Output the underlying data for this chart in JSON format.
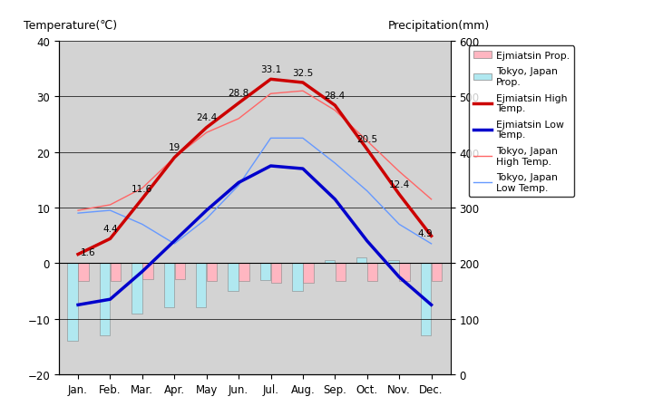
{
  "months": [
    "Jan.",
    "Feb.",
    "Mar.",
    "Apr.",
    "May",
    "Jun.",
    "Jul.",
    "Aug.",
    "Sep.",
    "Oct.",
    "Nov.",
    "Dec."
  ],
  "ejm_high": [
    1.6,
    4.4,
    11.6,
    19.0,
    24.4,
    28.8,
    33.1,
    32.5,
    28.4,
    20.5,
    12.4,
    4.9
  ],
  "ejm_low": [
    -7.5,
    -6.5,
    -1.5,
    4.0,
    9.5,
    14.5,
    17.5,
    17.0,
    11.5,
    4.0,
    -2.5,
    -7.5
  ],
  "tokyo_high": [
    9.5,
    10.5,
    13.5,
    19.0,
    23.5,
    26.0,
    30.5,
    31.0,
    27.5,
    22.0,
    16.5,
    11.5
  ],
  "tokyo_low": [
    9.0,
    9.5,
    7.0,
    3.5,
    8.0,
    14.0,
    22.5,
    22.5,
    18.0,
    13.0,
    7.0,
    3.5
  ],
  "ejm_precip_neg": [
    -3.2,
    -3.2,
    -2.8,
    -2.8,
    -3.2,
    -3.2,
    -3.5,
    -3.5,
    -3.2,
    -3.2,
    -3.2,
    -3.2
  ],
  "tokyo_precip_neg": [
    -14.0,
    -13.0,
    -9.0,
    -8.0,
    -8.0,
    -5.0,
    -3.0,
    -5.0,
    0.5,
    1.0,
    0.5,
    -13.0
  ],
  "plot_bg_color": "#d3d3d3",
  "ejm_high_color": "#cc0000",
  "ejm_low_color": "#0000cc",
  "tokyo_high_color": "#ff6666",
  "tokyo_low_color": "#6699ff",
  "ejm_precip_color": "#ffb6c1",
  "tokyo_precip_color": "#b0e8f0",
  "temp_ylim": [
    -20,
    40
  ],
  "precip_ylim": [
    0,
    600
  ],
  "title_left": "Temperature(℃)",
  "title_right": "Precipitation(mm)",
  "yticks_temp": [
    -20,
    -10,
    0,
    10,
    20,
    30,
    40
  ],
  "yticks_precip": [
    0,
    100,
    200,
    300,
    400,
    500,
    600
  ],
  "ejm_high_labels": [
    "1.6",
    "4.4",
    "11.6",
    "19",
    "24.4",
    "28.8",
    "33.1",
    "32.5",
    "28.4",
    "20.5",
    "12.4",
    "4.9"
  ]
}
